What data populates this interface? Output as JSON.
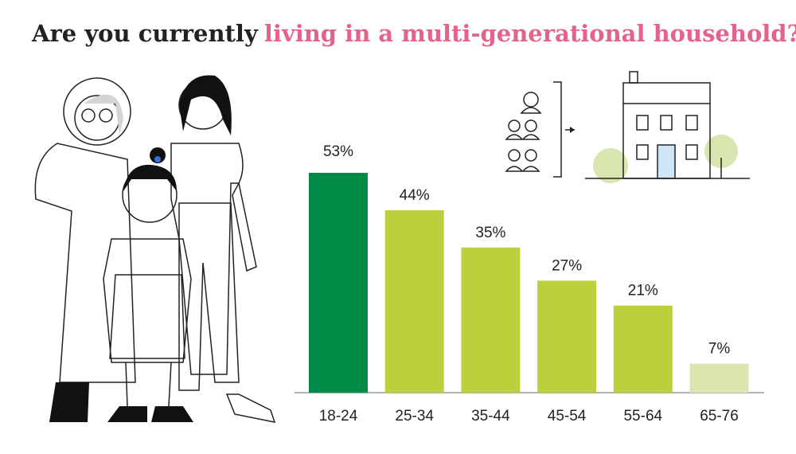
{
  "chart_data": {
    "type": "bar",
    "title": "Are you currently",
    "title_highlight": "living in a multi-generational household?",
    "categories": [
      "18-24",
      "25-34",
      "35-44",
      "45-54",
      "55-64",
      "65-76"
    ],
    "values": [
      53,
      44,
      35,
      27,
      21,
      7
    ],
    "value_labels": [
      "53%",
      "44%",
      "35%",
      "27%",
      "21%",
      "7%"
    ],
    "colors": [
      "#008a45",
      "#bcd03e",
      "#bcd03e",
      "#bcd03e",
      "#bcd03e",
      "#dde6b0"
    ]
  }
}
